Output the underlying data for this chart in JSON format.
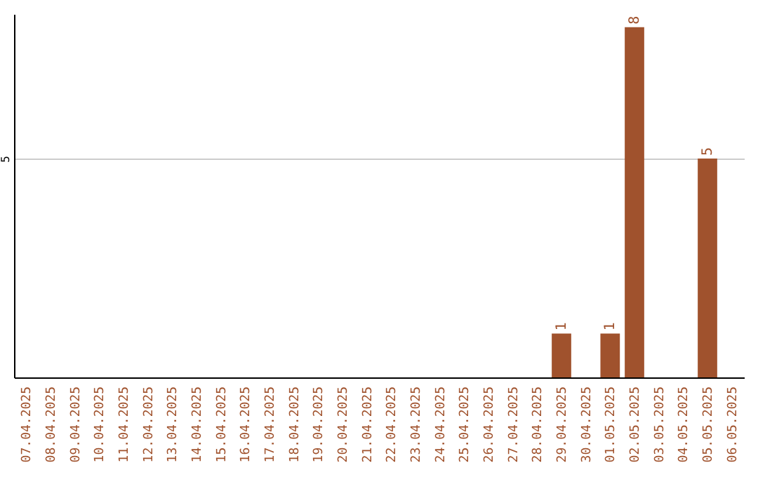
{
  "chart_data": {
    "type": "bar",
    "categories": [
      "07.04.2025",
      "08.04.2025",
      "09.04.2025",
      "10.04.2025",
      "11.04.2025",
      "12.04.2025",
      "13.04.2025",
      "14.04.2025",
      "15.04.2025",
      "16.04.2025",
      "17.04.2025",
      "18.04.2025",
      "19.04.2025",
      "20.04.2025",
      "21.04.2025",
      "22.04.2025",
      "23.04.2025",
      "24.04.2025",
      "25.04.2025",
      "26.04.2025",
      "27.04.2025",
      "28.04.2025",
      "29.04.2025",
      "30.04.2025",
      "01.05.2025",
      "02.05.2025",
      "03.05.2025",
      "04.05.2025",
      "05.05.2025",
      "06.05.2025"
    ],
    "values": [
      null,
      null,
      null,
      null,
      null,
      null,
      null,
      null,
      null,
      null,
      null,
      null,
      null,
      null,
      null,
      null,
      null,
      null,
      null,
      null,
      null,
      null,
      1,
      null,
      1,
      8,
      null,
      null,
      5,
      null
    ],
    "data_labels": true,
    "color": "#a0522d",
    "ylim": [
      0,
      8.3
    ],
    "yticks": [
      5
    ],
    "grid": "y"
  }
}
